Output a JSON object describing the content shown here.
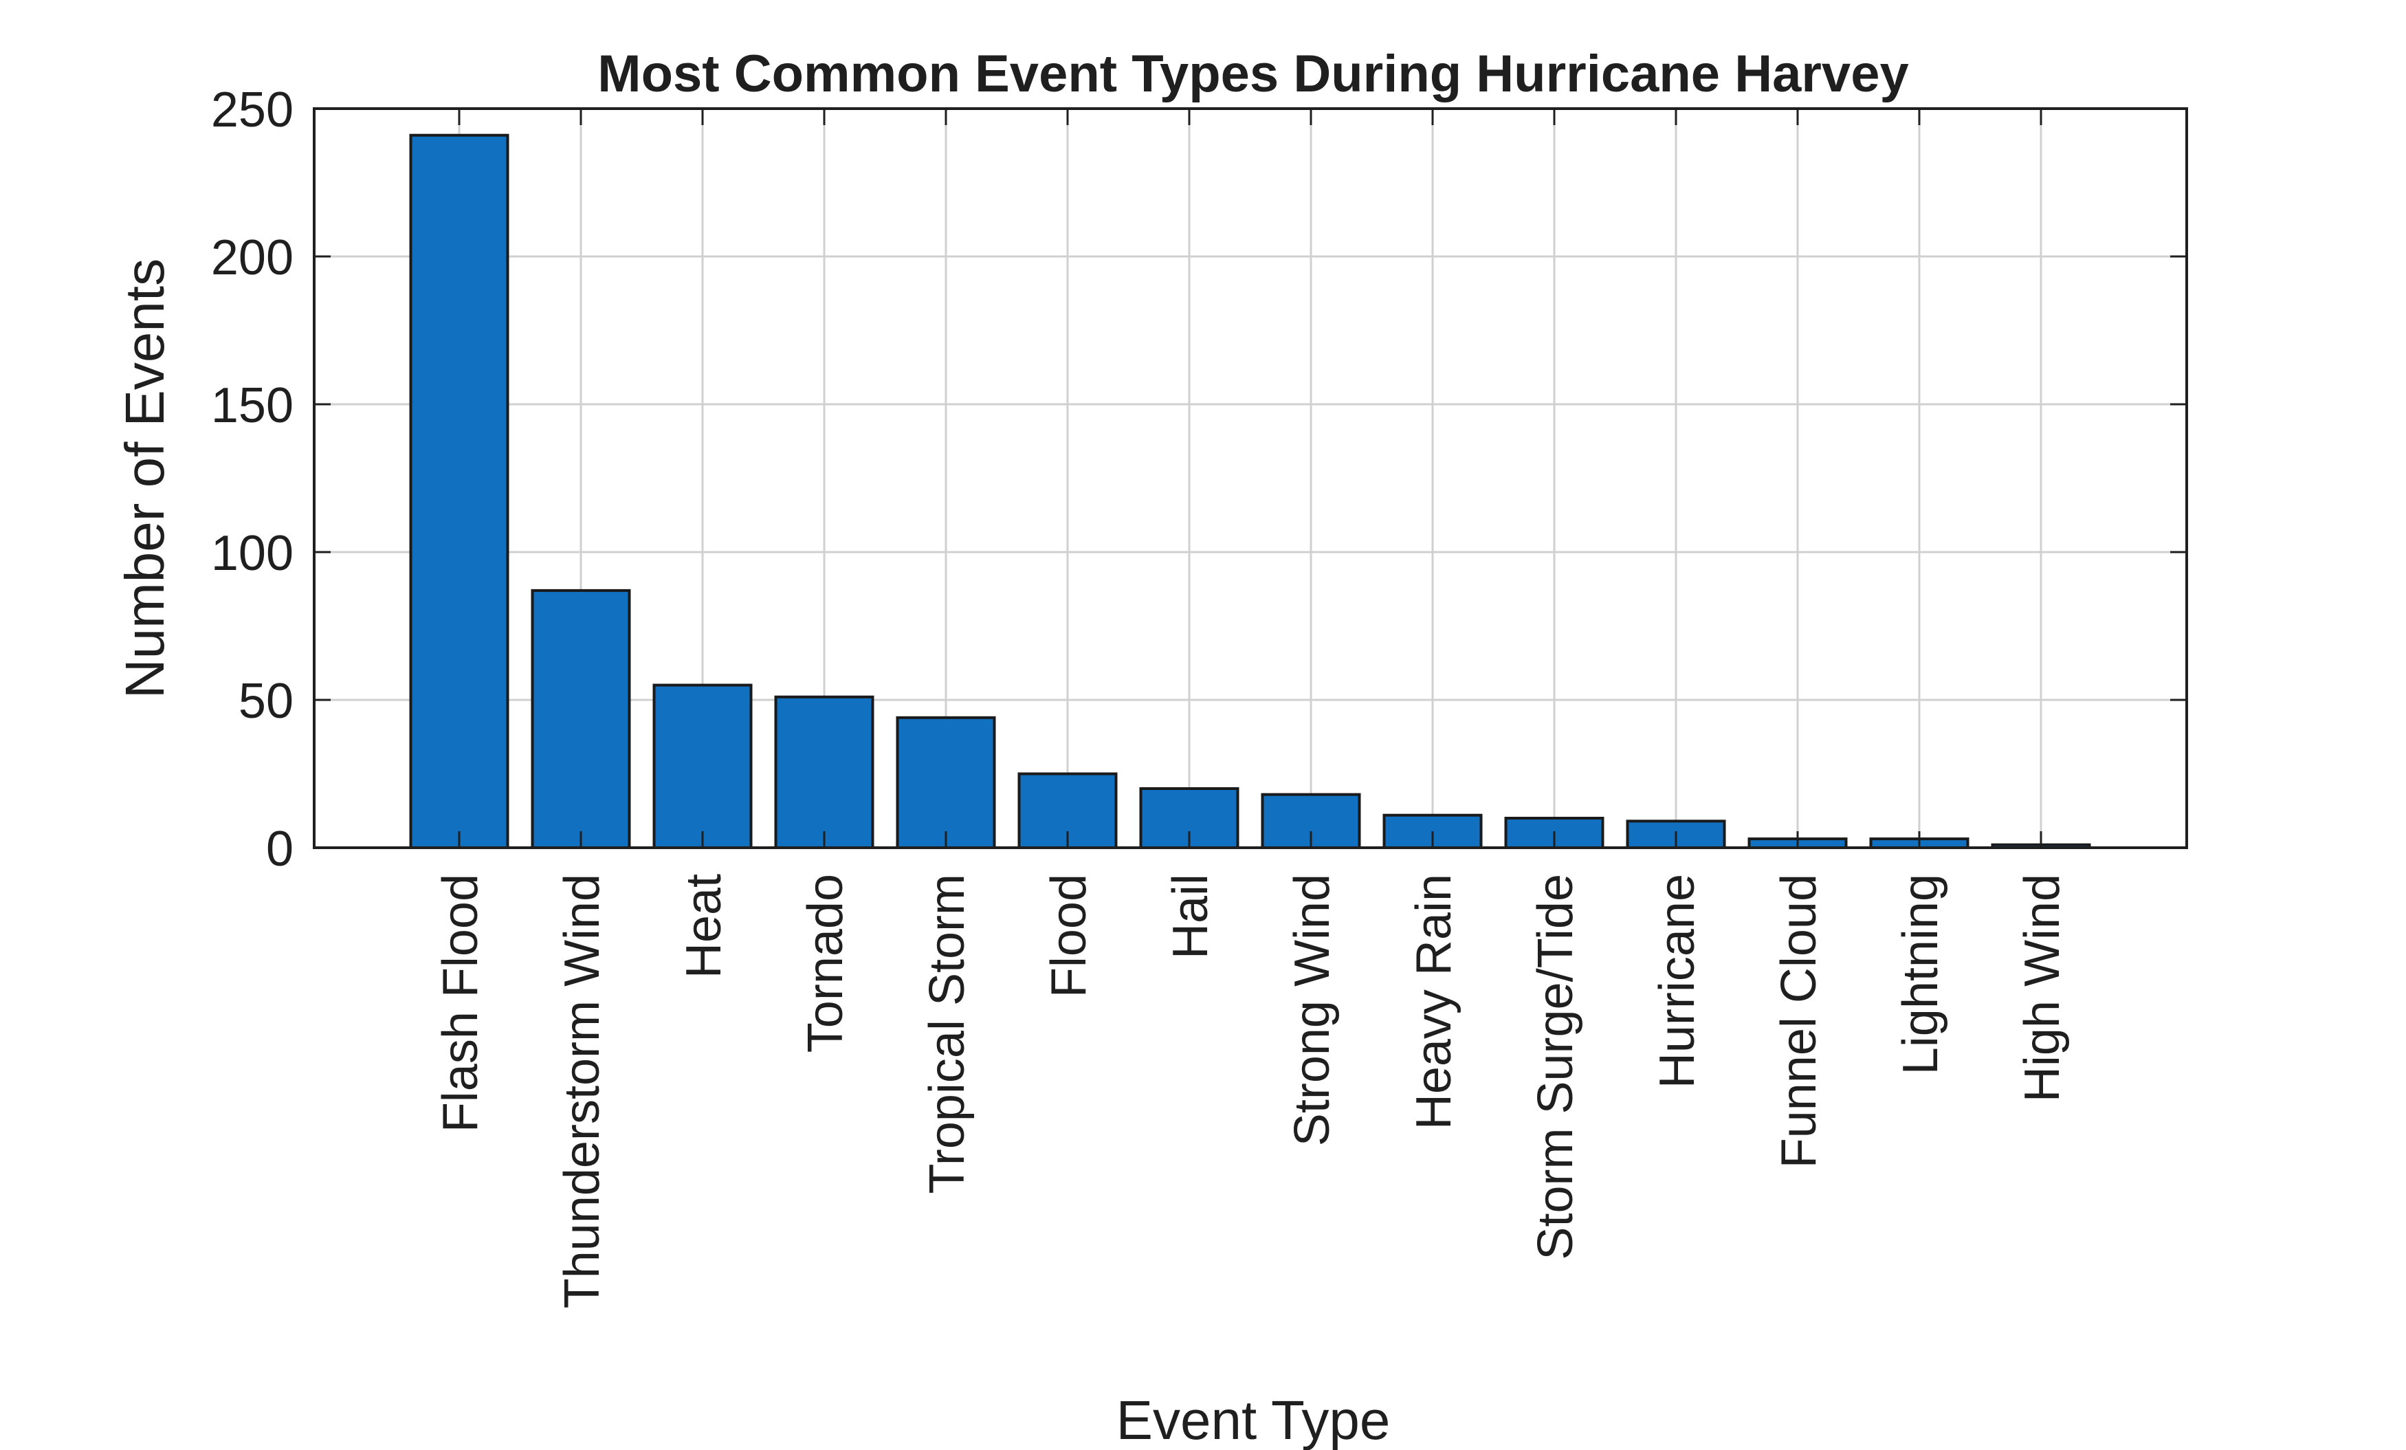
{
  "chart_data": {
    "type": "bar",
    "title": "Most Common Event Types During Hurricane Harvey",
    "xlabel": "Event Type",
    "ylabel": "Number of Events",
    "categories": [
      "Flash Flood",
      "Thunderstorm Wind",
      "Heat",
      "Tornado",
      "Tropical Storm",
      "Flood",
      "Hail",
      "Strong Wind",
      "Heavy Rain",
      "Storm Surge/Tide",
      "Hurricane",
      "Funnel Cloud",
      "Lightning",
      "High Wind"
    ],
    "values": [
      241,
      87,
      55,
      51,
      44,
      25,
      20,
      18,
      11,
      10,
      9,
      3,
      3,
      1
    ],
    "ylim": [
      0,
      250
    ],
    "yticks": [
      0,
      50,
      100,
      150,
      200,
      250
    ],
    "grid": true,
    "colors": {
      "bar": "#1170bf",
      "bar_edge": "#1a1a1a",
      "axis": "#1f1f1f",
      "grid": "#d0d0d0"
    }
  }
}
